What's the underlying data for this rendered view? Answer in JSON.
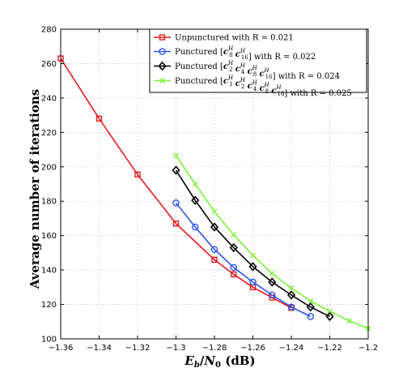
{
  "chart_data": {
    "type": "line",
    "title": "",
    "xlabel": "",
    "ylabel": "Average number of iterations",
    "xlim": [
      -1.36,
      -1.2
    ],
    "ylim": [
      100,
      280
    ],
    "xticks": [
      -1.36,
      -1.34,
      -1.32,
      -1.3,
      -1.28,
      -1.26,
      -1.24,
      -1.22,
      -1.2
    ],
    "xtick_labels": [
      "−1.36",
      "−1.34",
      "−1.32",
      "−1.3",
      "−1.28",
      "−1.26",
      "−1.24",
      "−1.22",
      "−1.2"
    ],
    "yticks": [
      100,
      120,
      140,
      160,
      180,
      200,
      220,
      240,
      260,
      280
    ],
    "ytick_labels": [
      "100",
      "120",
      "140",
      "160",
      "180",
      "200",
      "220",
      "240",
      "260",
      "280"
    ],
    "grid": true,
    "legend_position": "top-right",
    "series": [
      {
        "name": "Unpunctured with R = 0.021",
        "color": "#e41a1c",
        "marker": "square",
        "x": [
          -1.36,
          -1.34,
          -1.32,
          -1.3,
          -1.28,
          -1.27,
          -1.26,
          -1.25,
          -1.24
        ],
        "y": [
          263,
          228,
          195.5,
          167,
          146,
          137.5,
          130,
          124,
          118
        ]
      },
      {
        "name": "Punctured [c_8^H c_16^H] with R = 0.022",
        "color": "#2f55e6",
        "marker": "circle",
        "x": [
          -1.3,
          -1.29,
          -1.28,
          -1.27,
          -1.26,
          -1.25,
          -1.24,
          -1.23
        ],
        "y": [
          179,
          165,
          152,
          141.5,
          133,
          125.5,
          118.5,
          113
        ]
      },
      {
        "name": "Punctured [c_2^H c_4^H c_8^H c_16^H] with R = 0.024",
        "color": "#000000",
        "marker": "diamond",
        "x": [
          -1.3,
          -1.29,
          -1.28,
          -1.27,
          -1.26,
          -1.25,
          -1.24,
          -1.23,
          -1.22
        ],
        "y": [
          198,
          180.5,
          165,
          153,
          142,
          133,
          125.5,
          118.5,
          113
        ]
      },
      {
        "name": "Punctured [c_1^H c_2^H c_4^H c_8^H c_16^H] with R = 0.025",
        "color": "#7cf03a",
        "marker": "x",
        "x": [
          -1.3,
          -1.29,
          -1.28,
          -1.27,
          -1.26,
          -1.25,
          -1.24,
          -1.23,
          -1.22,
          -1.21,
          -1.2
        ],
        "y": [
          206.5,
          190,
          174,
          160.5,
          148.5,
          138,
          129.5,
          122,
          116,
          110.5,
          106
        ]
      }
    ]
  },
  "legend": {
    "entry1": "Unpunctured with R = 0.021",
    "entry2_prefix": "Punctured [",
    "entry2_terms": [
      {
        "b": "8",
        "s": "H"
      },
      {
        "b": "16",
        "s": "H"
      }
    ],
    "entry2_suffix": "] with R = 0.022",
    "entry3_prefix": "Punctured [",
    "entry3_terms": [
      {
        "b": "2",
        "s": "H"
      },
      {
        "b": "4",
        "s": "H"
      },
      {
        "b": "8",
        "s": "H"
      },
      {
        "b": "16",
        "s": "H"
      }
    ],
    "entry3_suffix": "] with R = 0.024",
    "entry4_prefix": "Punctured [",
    "entry4_terms": [
      {
        "b": "1",
        "s": "H"
      },
      {
        "b": "2",
        "s": "H"
      },
      {
        "b": "4",
        "s": "H"
      },
      {
        "b": "8",
        "s": "H"
      },
      {
        "b": "16",
        "s": "H"
      }
    ],
    "entry4_suffix": "] with R = 0.025",
    "term_letter": "c"
  },
  "xlabel_parts": {
    "e": "E",
    "e_sub": "b",
    "slash": "/",
    "n": "N",
    "n_sub": "0",
    "unit": " (dB)"
  }
}
